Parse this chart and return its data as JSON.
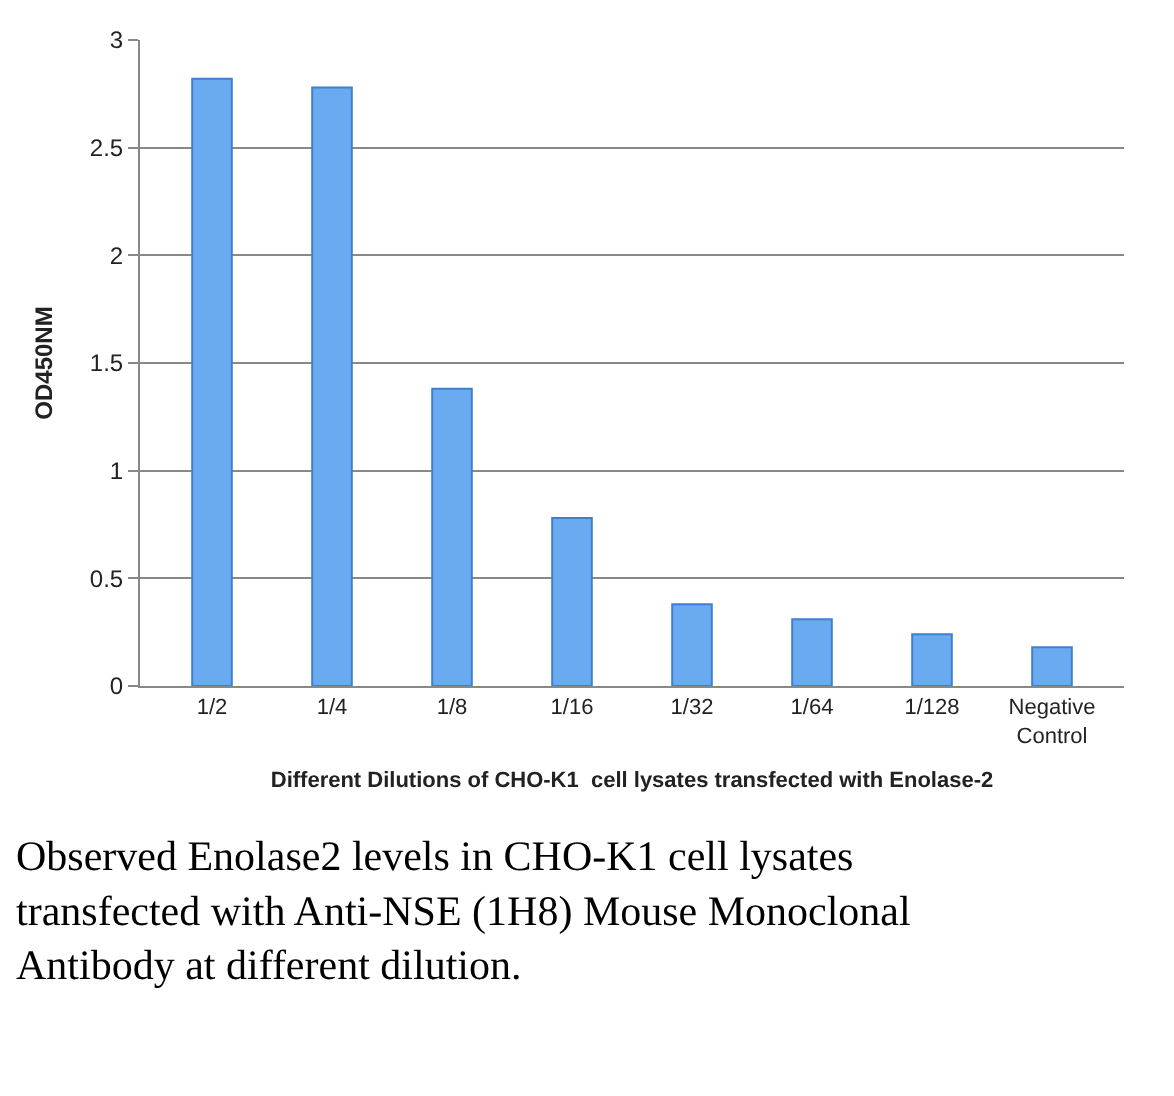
{
  "chart_data": {
    "type": "bar",
    "categories": [
      "1/2",
      "1/4",
      "1/8",
      "1/16",
      "1/32",
      "1/64",
      "1/128",
      "Negative Control"
    ],
    "values": [
      2.82,
      2.78,
      1.38,
      0.78,
      0.38,
      0.31,
      0.24,
      0.18
    ],
    "color": "#6aaaf0",
    "xlabel": "Different Dilutions of CHO-K1  cell lysates transfected with Enolase-2",
    "ylabel": "OD450NM",
    "ylim": [
      0,
      3
    ],
    "yticks": [
      0,
      0.5,
      1,
      1.5,
      2,
      2.5,
      3
    ],
    "grid": "y",
    "annotations": [
      "Observed Enolase2 levels in CHO-K1 cell lysates transfected with Anti-NSE (1H8) Mouse Monoclonal Antibody at different dilution."
    ]
  }
}
